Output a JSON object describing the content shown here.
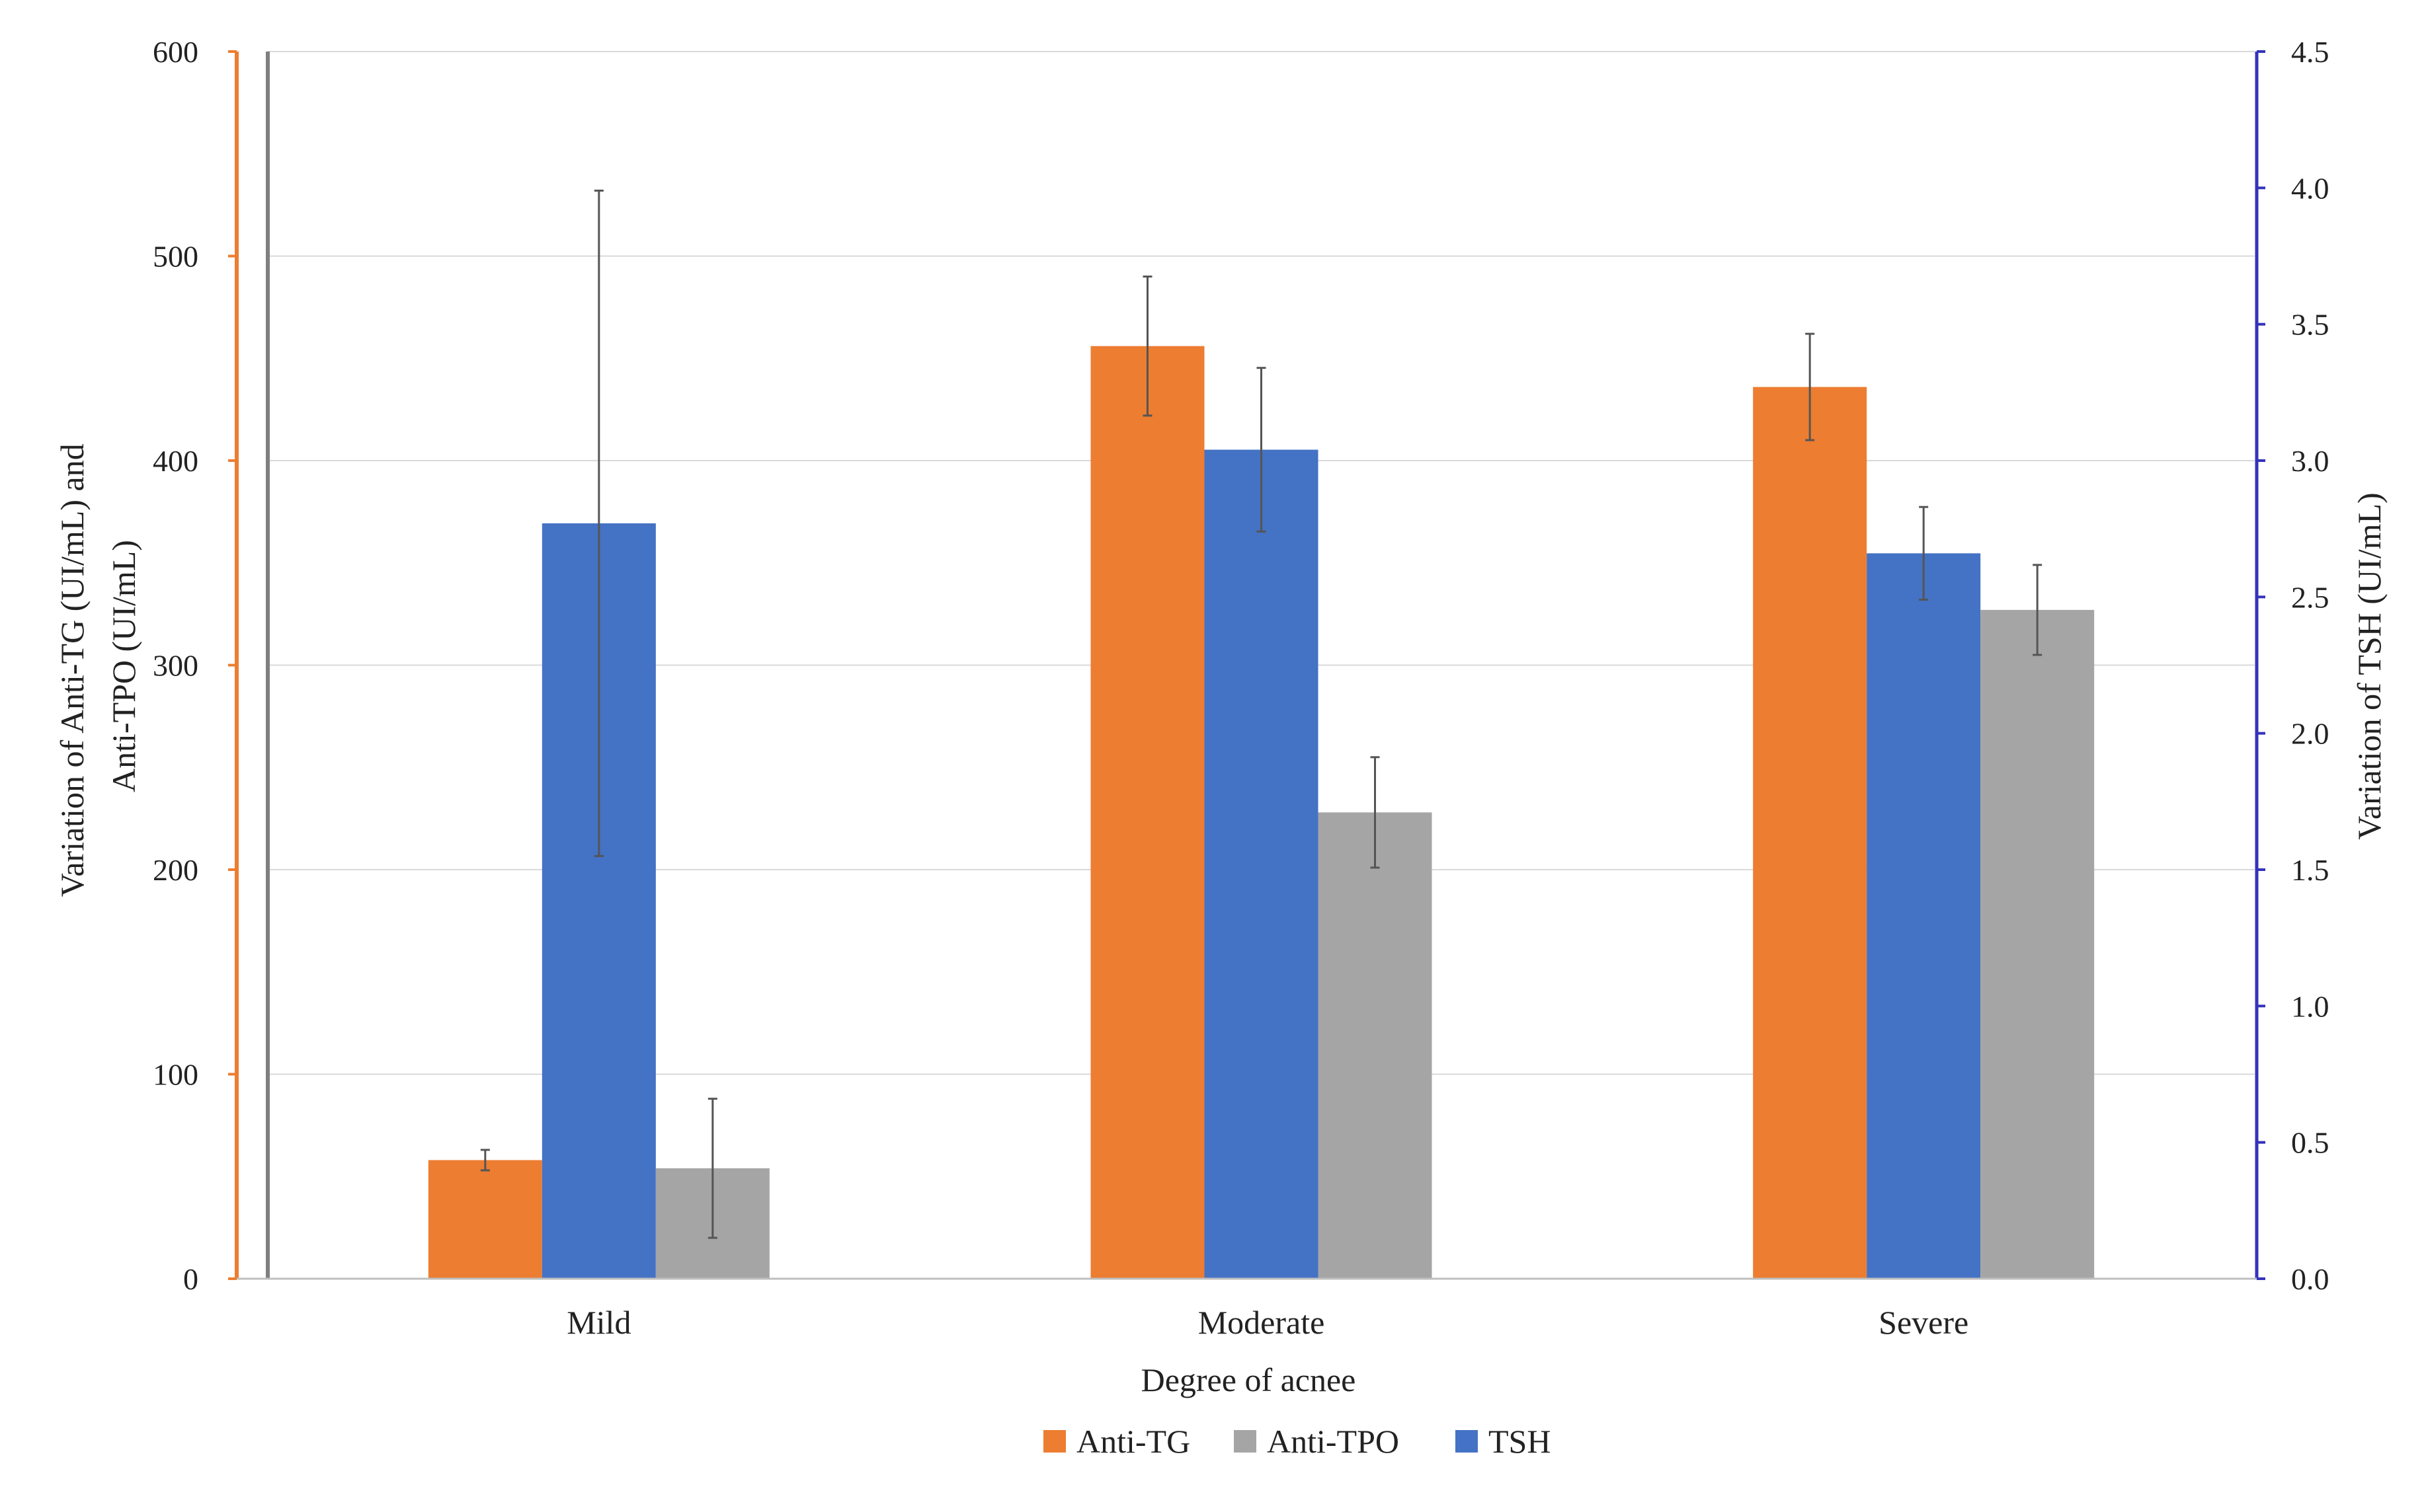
{
  "chart_data": {
    "type": "bar",
    "title": "",
    "xlabel": "Degree of acnee",
    "ylabel_left": [
      "Variation of Anti-TG (UI/mL) and",
      "Anti-TPO (UI/mL)"
    ],
    "ylabel_right": "Variation of TSH (UI/mL)",
    "categories": [
      "Mild",
      "Moderate",
      "Severe"
    ],
    "ylim_left": [
      0,
      600
    ],
    "ylim_right": [
      0,
      4.5
    ],
    "yticks_left": [
      "0",
      "100",
      "200",
      "300",
      "400",
      "500",
      "600"
    ],
    "yticks_right": [
      "0.0",
      "0.5",
      "1.0",
      "1.5",
      "2.0",
      "2.5",
      "3.0",
      "3.5",
      "4.0",
      "4.5"
    ],
    "grid": true,
    "legend_position": "bottom",
    "series": [
      {
        "name": "Anti-TG",
        "axis": "left",
        "color": "#ED7D31",
        "values": [
          58,
          456,
          436
        ],
        "error": [
          5,
          34,
          26
        ]
      },
      {
        "name": "TSH",
        "axis": "right",
        "color": "#4472C4",
        "values": [
          2.77,
          3.04,
          2.66
        ],
        "error": [
          1.22,
          0.3,
          0.17
        ]
      },
      {
        "name": "Anti-TPO",
        "axis": "left",
        "color": "#A5A5A5",
        "values": [
          54,
          228,
          327
        ],
        "error": [
          34,
          27,
          22
        ]
      }
    ],
    "legend": [
      {
        "name": "Anti-TG",
        "color": "#ED7D31"
      },
      {
        "name": "Anti-TPO",
        "color": "#A5A5A5"
      },
      {
        "name": "TSH",
        "color": "#4472C4"
      }
    ],
    "axis_colors": {
      "left_outer": "#ED7D31",
      "left_inner": "#7F7F7F",
      "right": "#3333BB",
      "grid": "#D9D9D9",
      "error_bar": "#555555"
    }
  }
}
